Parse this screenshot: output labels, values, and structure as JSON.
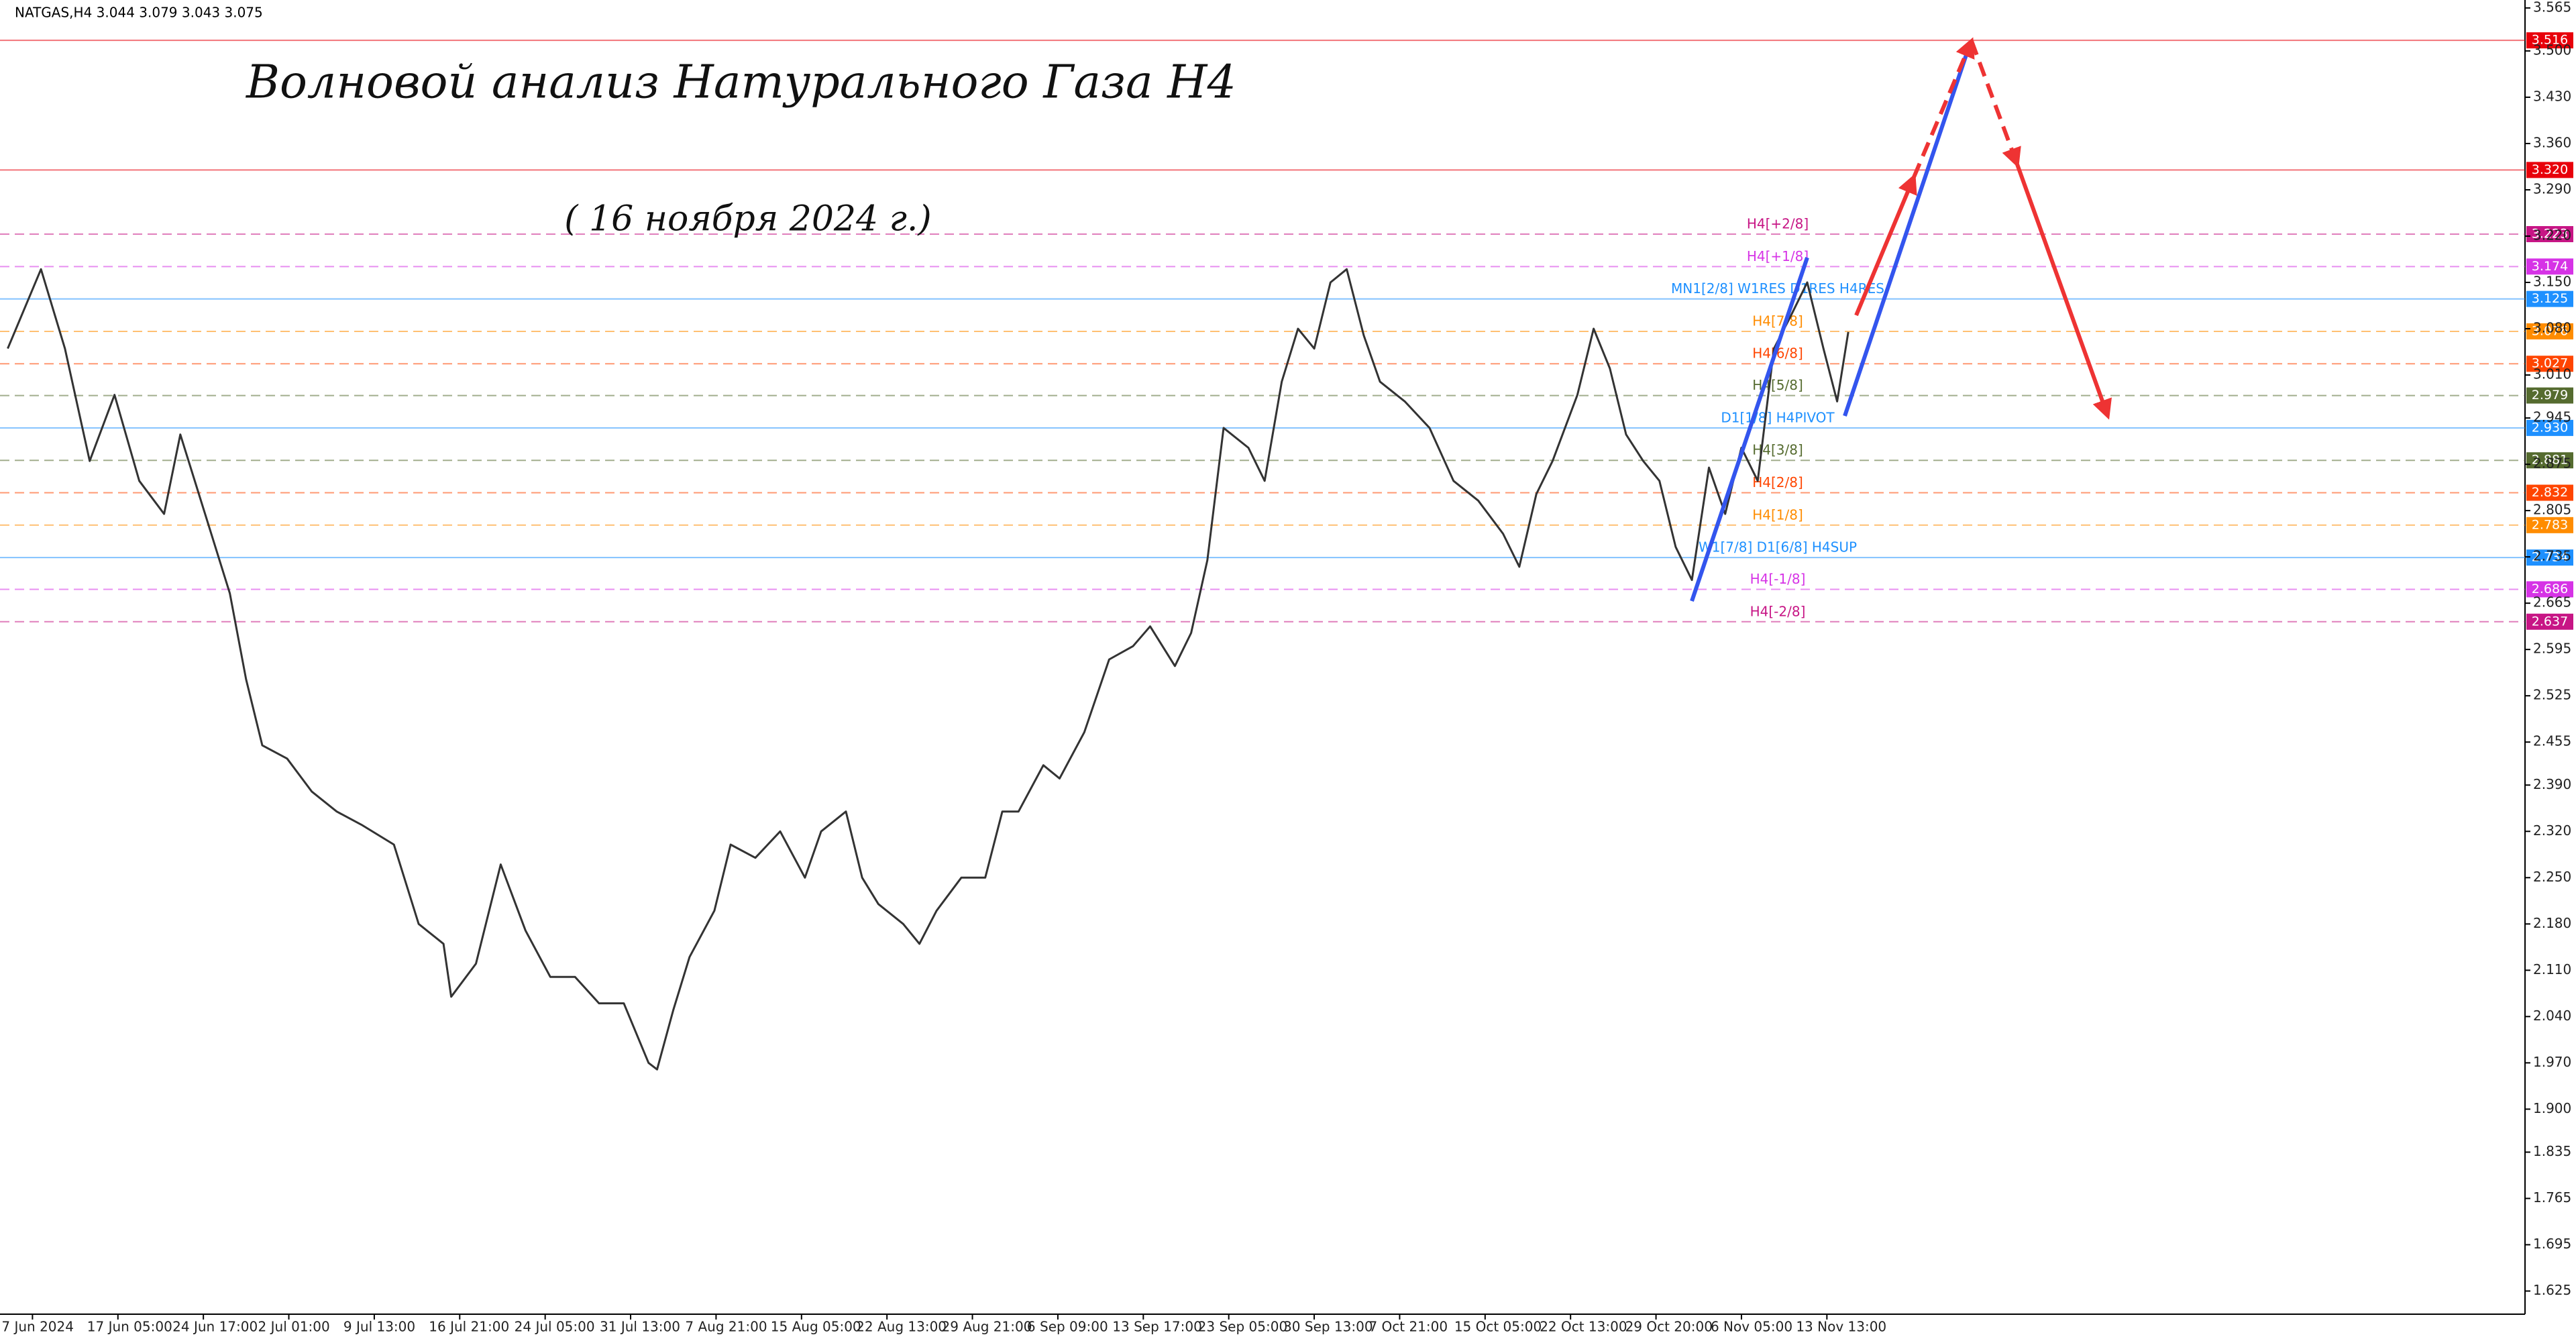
{
  "chart_data": {
    "type": "line",
    "header": "NATGAS,H4  3.044 3.079 3.043 3.075",
    "title": "Волновой анализ Натурального Газа H4",
    "subtitle": "( 16 ноября 2024 г.)",
    "xlim": [
      -0.38,
      29.17
    ],
    "xticks": [
      {
        "value": 0,
        "label": "7 Jun 2024"
      },
      {
        "value": 1,
        "label": "17 Jun 05:00"
      },
      {
        "value": 2,
        "label": "24 Jun 17:00"
      },
      {
        "value": 3,
        "label": "2 Jul 01:00"
      },
      {
        "value": 4,
        "label": "9 Jul 13:00"
      },
      {
        "value": 5,
        "label": "16 Jul 21:00"
      },
      {
        "value": 6,
        "label": "24 Jul 05:00"
      },
      {
        "value": 7,
        "label": "31 Jul 13:00"
      },
      {
        "value": 8,
        "label": "7 Aug 21:00"
      },
      {
        "value": 9,
        "label": "15 Aug 05:00"
      },
      {
        "value": 10,
        "label": "22 Aug 13:00"
      },
      {
        "value": 11,
        "label": "29 Aug 21:00"
      },
      {
        "value": 12,
        "label": "6 Sep 09:00"
      },
      {
        "value": 13,
        "label": "13 Sep 17:00"
      },
      {
        "value": 14,
        "label": "23 Sep 05:00"
      },
      {
        "value": 15,
        "label": "30 Sep 13:00"
      },
      {
        "value": 16,
        "label": "7 Oct 21:00"
      },
      {
        "value": 17,
        "label": "15 Oct 05:00"
      },
      {
        "value": 18,
        "label": "22 Oct 13:00"
      },
      {
        "value": 19,
        "label": "29 Oct 20:00"
      },
      {
        "value": 20,
        "label": "6 Nov 05:00"
      },
      {
        "value": 21,
        "label": "13 Nov 13:00"
      }
    ],
    "ylim": [
      1.59,
      3.577
    ],
    "yticks": [
      3.565,
      {
        "value": 3.5,
        "label": "3.500"
      },
      {
        "value": 3.43,
        "label": "3.430"
      },
      {
        "value": 3.36,
        "label": "3.360"
      },
      {
        "value": 3.29,
        "label": "3.290"
      },
      {
        "value": 3.22,
        "label": "3.220"
      },
      {
        "value": 3.15,
        "label": "3.150"
      },
      {
        "value": 3.08,
        "label": "3.080"
      },
      {
        "value": 3.01,
        "label": "3.010"
      },
      2.945,
      2.875,
      2.805,
      2.735,
      2.665,
      2.595,
      2.525,
      2.455,
      {
        "value": 2.39,
        "label": "2.390"
      },
      {
        "value": 2.32,
        "label": "2.320"
      },
      {
        "value": 2.25,
        "label": "2.250"
      },
      {
        "value": 2.18,
        "label": "2.180"
      },
      {
        "value": 2.11,
        "label": "2.110"
      },
      {
        "value": 2.04,
        "label": "2.040"
      },
      {
        "value": 1.97,
        "label": "1.970"
      },
      {
        "value": 1.9,
        "label": "1.900"
      },
      1.835,
      1.765,
      1.695,
      1.625
    ],
    "series": [
      {
        "name": "NATGAS,H4",
        "color": "#333333",
        "x": [
          -0.29,
          0.1,
          0.38,
          0.67,
          0.96,
          1.25,
          1.54,
          1.73,
          2.02,
          2.31,
          2.5,
          2.69,
          2.98,
          3.27,
          3.56,
          3.85,
          4.23,
          4.52,
          4.81,
          4.9,
          5.19,
          5.48,
          5.77,
          6.06,
          6.35,
          6.63,
          6.92,
          7.21,
          7.31,
          7.5,
          7.69,
          7.98,
          8.17,
          8.46,
          8.75,
          9.04,
          9.23,
          9.52,
          9.71,
          9.9,
          10.19,
          10.38,
          10.58,
          10.87,
          11.15,
          11.35,
          11.54,
          11.83,
          12.02,
          12.31,
          12.6,
          12.88,
          13.08,
          13.37,
          13.56,
          13.75,
          13.94,
          14.23,
          14.42,
          14.62,
          14.81,
          15,
          15.19,
          15.38,
          15.58,
          15.77,
          16.06,
          16.35,
          16.63,
          16.92,
          17.21,
          17.4,
          17.6,
          17.79,
          18.08,
          18.27,
          18.46,
          18.65,
          18.85,
          19.04,
          19.23,
          19.42,
          19.62,
          19.81,
          20,
          20.19,
          20.38,
          20.58,
          20.77,
          20.96,
          21.12,
          21.25
        ],
        "values": [
          3.05,
          3.17,
          3.05,
          2.88,
          2.98,
          2.85,
          2.8,
          2.92,
          2.8,
          2.68,
          2.55,
          2.45,
          2.43,
          2.38,
          2.35,
          2.33,
          2.3,
          2.18,
          2.15,
          2.07,
          2.12,
          2.27,
          2.17,
          2.1,
          2.1,
          2.06,
          2.06,
          1.97,
          1.96,
          2.05,
          2.13,
          2.2,
          2.3,
          2.28,
          2.32,
          2.25,
          2.32,
          2.35,
          2.25,
          2.21,
          2.18,
          2.15,
          2.2,
          2.25,
          2.25,
          2.35,
          2.35,
          2.42,
          2.4,
          2.47,
          2.58,
          2.6,
          2.63,
          2.57,
          2.62,
          2.73,
          2.93,
          2.9,
          2.85,
          3.0,
          3.08,
          3.05,
          3.15,
          3.17,
          3.07,
          3.0,
          2.97,
          2.93,
          2.85,
          2.82,
          2.77,
          2.72,
          2.83,
          2.88,
          2.98,
          3.08,
          3.02,
          2.92,
          2.88,
          2.85,
          2.75,
          2.7,
          2.87,
          2.8,
          2.9,
          2.85,
          3.05,
          3.1,
          3.15,
          3.05,
          2.97,
          3.075
        ]
      }
    ],
    "levels": {
      "values": [
        3.516,
        3.32,
        3.223,
        3.174,
        3.125,
        3.076,
        3.027,
        2.979,
        2.93,
        2.881,
        2.832,
        2.783,
        2.734,
        2.686,
        2.637
      ],
      "value_labels": [
        "3.516",
        "3.320",
        "3.223",
        "3.174",
        "3.125",
        "3.076",
        "3.027",
        "2.979",
        "2.930",
        "2.881",
        "2.832",
        "2.783",
        "2.734",
        "2.686",
        "2.637"
      ],
      "labels": [
        null,
        null,
        "H4[+2/8]",
        "H4[+1/8]",
        "MN1[2/8] W1RES D1RES H4RES",
        "H4[7/8]",
        "H4[6/8]",
        "H4[5/8]",
        "D1[1/8] H4PIVOT",
        "H4[3/8]",
        "H4[2/8]",
        "H4[1/8]",
        "W1[7/8] D1[6/8] H4SUP",
        "H4[-1/8]",
        "H4[-2/8]"
      ],
      "colors": [
        "#e8000b",
        "#e8000b",
        "#c71585",
        "#d633e6",
        "#1e90ff",
        "#ff8c00",
        "#ff4500",
        "#556b2f",
        "#1e90ff",
        "#556b2f",
        "#ff4500",
        "#ff8c00",
        "#1e90ff",
        "#d633e6",
        "#c71585"
      ],
      "dashed": [
        false,
        false,
        true,
        true,
        false,
        true,
        true,
        true,
        false,
        true,
        true,
        true,
        false,
        true,
        true
      ]
    }
  }
}
